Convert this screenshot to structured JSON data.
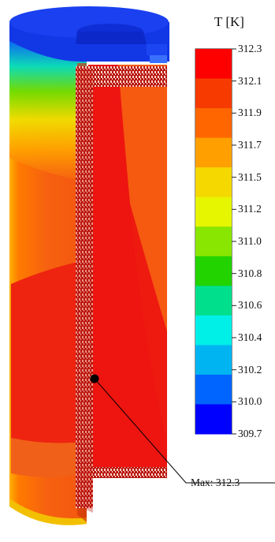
{
  "legend": {
    "title": "T [K]",
    "ticks": [
      "312.3",
      "312.1",
      "311.9",
      "311.7",
      "311.5",
      "311.2",
      "311.0",
      "310.8",
      "310.6",
      "310.4",
      "310.2",
      "310.0",
      "309.7"
    ],
    "colors": [
      "#ff0000",
      "#f73b00",
      "#ff6600",
      "#ffa000",
      "#f5d800",
      "#e6f500",
      "#88e600",
      "#22d300",
      "#00e08c",
      "#00f0e8",
      "#00b4f2",
      "#0064ff",
      "#0000ff"
    ]
  },
  "annotation": {
    "label": "Max: 312.3"
  },
  "palette": {
    "cap_blue": "#1032ee",
    "shell_orange": "#f55a10",
    "core_red": "#ee1410",
    "hot_red": "#ff1a0a"
  }
}
